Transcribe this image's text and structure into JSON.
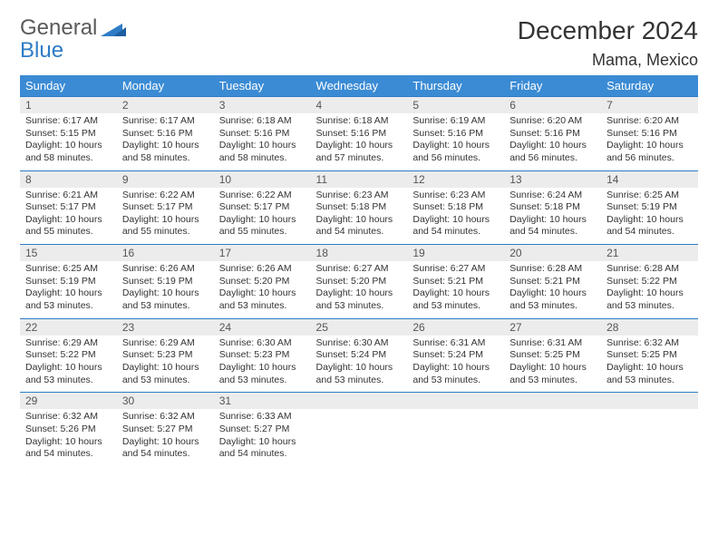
{
  "brand": {
    "word1": "General",
    "word2": "Blue"
  },
  "title": "December 2024",
  "location": "Mama, Mexico",
  "colors": {
    "header_bg": "#3b8bd4",
    "header_text": "#ffffff",
    "row_divider": "#2e7cc6",
    "daynum_bg": "#ececec",
    "logo_gray": "#5a5a5a",
    "logo_blue": "#2e7cc6",
    "body_text": "#333333",
    "page_bg": "#ffffff"
  },
  "typography": {
    "month_title_fontsize": 28,
    "location_fontsize": 18,
    "weekday_fontsize": 13,
    "daynum_fontsize": 12,
    "body_fontsize": 10.5,
    "logo_fontsize": 24
  },
  "weekdays": [
    "Sunday",
    "Monday",
    "Tuesday",
    "Wednesday",
    "Thursday",
    "Friday",
    "Saturday"
  ],
  "weeks": [
    [
      {
        "n": "1",
        "sunrise": "6:17 AM",
        "sunset": "5:15 PM",
        "daylight": "10 hours and 58 minutes."
      },
      {
        "n": "2",
        "sunrise": "6:17 AM",
        "sunset": "5:16 PM",
        "daylight": "10 hours and 58 minutes."
      },
      {
        "n": "3",
        "sunrise": "6:18 AM",
        "sunset": "5:16 PM",
        "daylight": "10 hours and 58 minutes."
      },
      {
        "n": "4",
        "sunrise": "6:18 AM",
        "sunset": "5:16 PM",
        "daylight": "10 hours and 57 minutes."
      },
      {
        "n": "5",
        "sunrise": "6:19 AM",
        "sunset": "5:16 PM",
        "daylight": "10 hours and 56 minutes."
      },
      {
        "n": "6",
        "sunrise": "6:20 AM",
        "sunset": "5:16 PM",
        "daylight": "10 hours and 56 minutes."
      },
      {
        "n": "7",
        "sunrise": "6:20 AM",
        "sunset": "5:16 PM",
        "daylight": "10 hours and 56 minutes."
      }
    ],
    [
      {
        "n": "8",
        "sunrise": "6:21 AM",
        "sunset": "5:17 PM",
        "daylight": "10 hours and 55 minutes."
      },
      {
        "n": "9",
        "sunrise": "6:22 AM",
        "sunset": "5:17 PM",
        "daylight": "10 hours and 55 minutes."
      },
      {
        "n": "10",
        "sunrise": "6:22 AM",
        "sunset": "5:17 PM",
        "daylight": "10 hours and 55 minutes."
      },
      {
        "n": "11",
        "sunrise": "6:23 AM",
        "sunset": "5:18 PM",
        "daylight": "10 hours and 54 minutes."
      },
      {
        "n": "12",
        "sunrise": "6:23 AM",
        "sunset": "5:18 PM",
        "daylight": "10 hours and 54 minutes."
      },
      {
        "n": "13",
        "sunrise": "6:24 AM",
        "sunset": "5:18 PM",
        "daylight": "10 hours and 54 minutes."
      },
      {
        "n": "14",
        "sunrise": "6:25 AM",
        "sunset": "5:19 PM",
        "daylight": "10 hours and 54 minutes."
      }
    ],
    [
      {
        "n": "15",
        "sunrise": "6:25 AM",
        "sunset": "5:19 PM",
        "daylight": "10 hours and 53 minutes."
      },
      {
        "n": "16",
        "sunrise": "6:26 AM",
        "sunset": "5:19 PM",
        "daylight": "10 hours and 53 minutes."
      },
      {
        "n": "17",
        "sunrise": "6:26 AM",
        "sunset": "5:20 PM",
        "daylight": "10 hours and 53 minutes."
      },
      {
        "n": "18",
        "sunrise": "6:27 AM",
        "sunset": "5:20 PM",
        "daylight": "10 hours and 53 minutes."
      },
      {
        "n": "19",
        "sunrise": "6:27 AM",
        "sunset": "5:21 PM",
        "daylight": "10 hours and 53 minutes."
      },
      {
        "n": "20",
        "sunrise": "6:28 AM",
        "sunset": "5:21 PM",
        "daylight": "10 hours and 53 minutes."
      },
      {
        "n": "21",
        "sunrise": "6:28 AM",
        "sunset": "5:22 PM",
        "daylight": "10 hours and 53 minutes."
      }
    ],
    [
      {
        "n": "22",
        "sunrise": "6:29 AM",
        "sunset": "5:22 PM",
        "daylight": "10 hours and 53 minutes."
      },
      {
        "n": "23",
        "sunrise": "6:29 AM",
        "sunset": "5:23 PM",
        "daylight": "10 hours and 53 minutes."
      },
      {
        "n": "24",
        "sunrise": "6:30 AM",
        "sunset": "5:23 PM",
        "daylight": "10 hours and 53 minutes."
      },
      {
        "n": "25",
        "sunrise": "6:30 AM",
        "sunset": "5:24 PM",
        "daylight": "10 hours and 53 minutes."
      },
      {
        "n": "26",
        "sunrise": "6:31 AM",
        "sunset": "5:24 PM",
        "daylight": "10 hours and 53 minutes."
      },
      {
        "n": "27",
        "sunrise": "6:31 AM",
        "sunset": "5:25 PM",
        "daylight": "10 hours and 53 minutes."
      },
      {
        "n": "28",
        "sunrise": "6:32 AM",
        "sunset": "5:25 PM",
        "daylight": "10 hours and 53 minutes."
      }
    ],
    [
      {
        "n": "29",
        "sunrise": "6:32 AM",
        "sunset": "5:26 PM",
        "daylight": "10 hours and 54 minutes."
      },
      {
        "n": "30",
        "sunrise": "6:32 AM",
        "sunset": "5:27 PM",
        "daylight": "10 hours and 54 minutes."
      },
      {
        "n": "31",
        "sunrise": "6:33 AM",
        "sunset": "5:27 PM",
        "daylight": "10 hours and 54 minutes."
      },
      null,
      null,
      null,
      null
    ]
  ],
  "labels": {
    "sunrise_prefix": "Sunrise: ",
    "sunset_prefix": "Sunset: ",
    "daylight_prefix": "Daylight: "
  }
}
